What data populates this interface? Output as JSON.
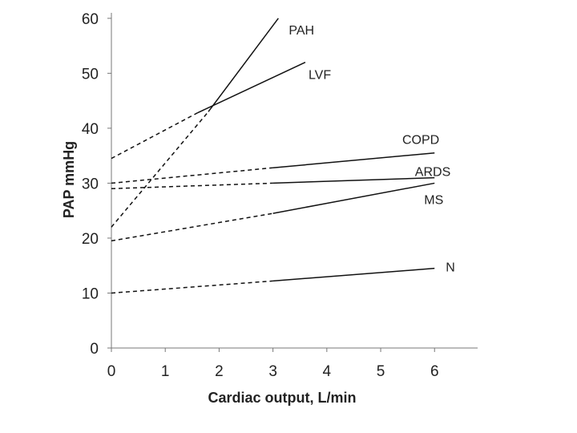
{
  "chart_data": {
    "type": "line",
    "title": "",
    "xlabel": "Cardiac output, L/min",
    "ylabel": "PAP mmHg",
    "xlim": [
      0,
      6.8
    ],
    "ylim": [
      0,
      61
    ],
    "xticks": [
      0,
      1,
      2,
      3,
      4,
      5,
      6
    ],
    "yticks": [
      0,
      10,
      20,
      30,
      40,
      50,
      60
    ],
    "grid": false,
    "legend": "inline labels at line ends",
    "series": [
      {
        "name": "PAH",
        "extrapolated": {
          "x": [
            0,
            1.8
          ],
          "y": [
            22,
            43
          ]
        },
        "measured": {
          "x": [
            1.8,
            3.1
          ],
          "y": [
            43,
            60
          ]
        }
      },
      {
        "name": "LVF",
        "extrapolated": {
          "x": [
            0,
            1.6
          ],
          "y": [
            34.5,
            42.8
          ]
        },
        "measured": {
          "x": [
            1.6,
            3.6
          ],
          "y": [
            42.8,
            52
          ]
        }
      },
      {
        "name": "COPD",
        "extrapolated": {
          "x": [
            0,
            3
          ],
          "y": [
            30,
            32.8
          ]
        },
        "measured": {
          "x": [
            3,
            6
          ],
          "y": [
            32.8,
            35.5
          ]
        }
      },
      {
        "name": "ARDS",
        "extrapolated": {
          "x": [
            0,
            3
          ],
          "y": [
            29,
            30
          ]
        },
        "measured": {
          "x": [
            3,
            6
          ],
          "y": [
            30,
            31
          ]
        }
      },
      {
        "name": "MS",
        "extrapolated": {
          "x": [
            0,
            3
          ],
          "y": [
            19.5,
            24.5
          ]
        },
        "measured": {
          "x": [
            3,
            6
          ],
          "y": [
            24.5,
            30
          ]
        }
      },
      {
        "name": "N",
        "extrapolated": {
          "x": [
            0,
            3
          ],
          "y": [
            10,
            12.2
          ]
        },
        "measured": {
          "x": [
            3,
            6
          ],
          "y": [
            12.2,
            14.5
          ]
        }
      }
    ]
  }
}
